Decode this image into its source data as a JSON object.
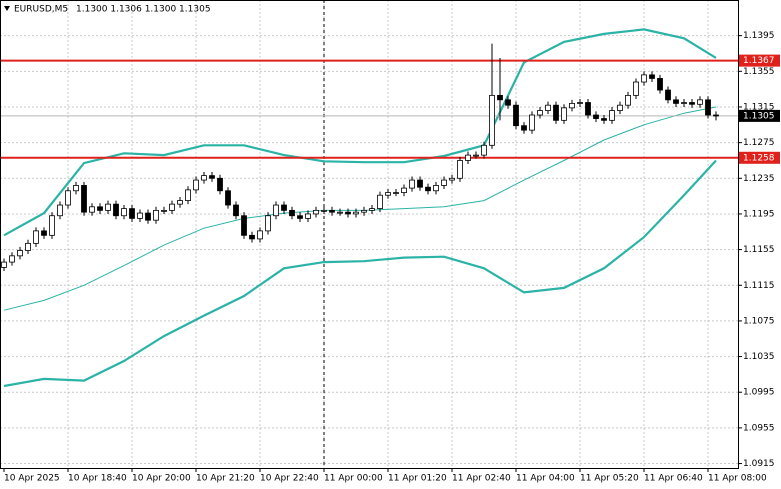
{
  "chart_data": {
    "type": "candlestick",
    "symbol": "EURUSD,M5",
    "ohlc_text": "1.1300 1.1306 1.1300 1.1305",
    "xlim": [
      -0.5,
      91.75
    ],
    "ylim": [
      1.091,
      1.1435
    ],
    "yticks": [
      1.1395,
      1.1355,
      1.1315,
      1.1275,
      1.1235,
      1.1195,
      1.1155,
      1.1115,
      1.1075,
      1.1035,
      1.0995,
      1.0955,
      1.0915
    ],
    "xticks": [
      {
        "value": 0,
        "label": "10 Apr 2025"
      },
      {
        "value": 8,
        "label": "10 Apr 18:40"
      },
      {
        "value": 16,
        "label": "10 Apr 20:00"
      },
      {
        "value": 24,
        "label": "10 Apr 21:20"
      },
      {
        "value": 32,
        "label": "10 Apr 22:40"
      },
      {
        "value": 40,
        "label": "11 Apr 00:00"
      },
      {
        "value": 48,
        "label": "11 Apr 01:20"
      },
      {
        "value": 56,
        "label": "11 Apr 02:40"
      },
      {
        "value": 64,
        "label": "11 Apr 04:00"
      },
      {
        "value": 72,
        "label": "11 Apr 05:20"
      },
      {
        "value": 80,
        "label": "11 Apr 06:40"
      },
      {
        "value": 88,
        "label": "11 Apr 08:00"
      }
    ],
    "grid": true,
    "open": [
      1.1135,
      1.1141,
      1.1148,
      1.1154,
      1.1162,
      1.1176,
      1.1171,
      1.1193,
      1.1205,
      1.1221,
      1.1227,
      1.1197,
      1.1203,
      1.1199,
      1.1206,
      1.1193,
      1.1201,
      1.119,
      1.1196,
      1.1188,
      1.1199,
      1.1199,
      1.1206,
      1.121,
      1.1222,
      1.1233,
      1.1238,
      1.1235,
      1.1221,
      1.1205,
      1.1193,
      1.1171,
      1.1167,
      1.1176,
      1.1193,
      1.1205,
      1.1199,
      1.1193,
      1.119,
      1.1195,
      1.1199,
      1.1199,
      1.1197,
      1.1197,
      1.1195,
      1.1197,
      1.1199,
      1.1201,
      1.1216,
      1.1219,
      1.1219,
      1.1224,
      1.1233,
      1.1225,
      1.1221,
      1.1227,
      1.1233,
      1.1235,
      1.1255,
      1.1261,
      1.1261,
      1.1272,
      1.1328,
      1.1323,
      1.1317,
      1.1294,
      1.1289,
      1.1306,
      1.1311,
      1.1317,
      1.13,
      1.1314,
      1.1319,
      1.132,
      1.1306,
      1.1302,
      1.13,
      1.1311,
      1.1317,
      1.1328,
      1.1343,
      1.1351,
      1.1347,
      1.1334,
      1.1323,
      1.1319,
      1.132,
      1.1318,
      1.1323,
      1.1306
    ],
    "high": [
      1.1145,
      1.1152,
      1.1158,
      1.1166,
      1.118,
      1.118,
      1.1197,
      1.1209,
      1.1225,
      1.1231,
      1.1231,
      1.1207,
      1.1207,
      1.121,
      1.121,
      1.1205,
      1.1205,
      1.12,
      1.12,
      1.1203,
      1.1203,
      1.121,
      1.1214,
      1.1226,
      1.1237,
      1.1242,
      1.1242,
      1.1239,
      1.1225,
      1.1209,
      1.1197,
      1.1175,
      1.118,
      1.1197,
      1.1209,
      1.1209,
      1.1203,
      1.1197,
      1.1199,
      1.1203,
      1.1203,
      1.1203,
      1.1201,
      1.1201,
      1.1201,
      1.1203,
      1.1205,
      1.122,
      1.1223,
      1.1223,
      1.1228,
      1.1237,
      1.1237,
      1.1229,
      1.1231,
      1.1237,
      1.1239,
      1.1259,
      1.1265,
      1.1265,
      1.1276,
      1.1386,
      1.137,
      1.1327,
      1.1321,
      1.1298,
      1.131,
      1.1315,
      1.1321,
      1.1321,
      1.1318,
      1.1323,
      1.1324,
      1.1324,
      1.131,
      1.1306,
      1.1315,
      1.1321,
      1.1332,
      1.1347,
      1.1355,
      1.1355,
      1.1351,
      1.1338,
      1.1327,
      1.1324,
      1.1324,
      1.1327,
      1.1327,
      1.131
    ],
    "low": [
      1.1131,
      1.1137,
      1.1144,
      1.115,
      1.1158,
      1.1167,
      1.1167,
      1.1189,
      1.1201,
      1.1217,
      1.1193,
      1.1193,
      1.1195,
      1.1195,
      1.1189,
      1.1189,
      1.1186,
      1.1186,
      1.1184,
      1.1184,
      1.1195,
      1.1195,
      1.1202,
      1.1206,
      1.1218,
      1.1229,
      1.1231,
      1.1217,
      1.1201,
      1.1189,
      1.1167,
      1.1163,
      1.1163,
      1.1172,
      1.1189,
      1.1195,
      1.1189,
      1.1186,
      1.1186,
      1.1191,
      1.1195,
      1.1193,
      1.1193,
      1.1191,
      1.1191,
      1.1193,
      1.1195,
      1.1197,
      1.1212,
      1.1215,
      1.1215,
      1.122,
      1.1221,
      1.1217,
      1.1217,
      1.1223,
      1.1229,
      1.1231,
      1.1251,
      1.1257,
      1.1257,
      1.1268,
      1.13,
      1.1313,
      1.129,
      1.1285,
      1.1285,
      1.1302,
      1.1307,
      1.1296,
      1.1296,
      1.131,
      1.1315,
      1.1302,
      1.1298,
      1.1296,
      1.1296,
      1.1307,
      1.1313,
      1.1324,
      1.1339,
      1.1343,
      1.133,
      1.1319,
      1.1315,
      1.1315,
      1.1314,
      1.1314,
      1.1302,
      1.13
    ],
    "close": [
      1.1141,
      1.1148,
      1.1154,
      1.1162,
      1.1176,
      1.1171,
      1.1193,
      1.1205,
      1.1221,
      1.1227,
      1.1197,
      1.1203,
      1.1199,
      1.1206,
      1.1193,
      1.1201,
      1.119,
      1.1196,
      1.1188,
      1.1199,
      1.1199,
      1.1206,
      1.121,
      1.1222,
      1.1233,
      1.1238,
      1.1235,
      1.1221,
      1.1205,
      1.1193,
      1.1171,
      1.1167,
      1.1176,
      1.1193,
      1.1205,
      1.1199,
      1.1193,
      1.119,
      1.1195,
      1.1199,
      1.1199,
      1.1197,
      1.1197,
      1.1195,
      1.1197,
      1.1199,
      1.1201,
      1.1216,
      1.1219,
      1.1219,
      1.1224,
      1.1233,
      1.1225,
      1.1221,
      1.1227,
      1.1233,
      1.1235,
      1.1255,
      1.1261,
      1.1261,
      1.1272,
      1.1328,
      1.1323,
      1.1317,
      1.1294,
      1.1289,
      1.1306,
      1.1311,
      1.1317,
      1.13,
      1.1314,
      1.1319,
      1.132,
      1.1306,
      1.1302,
      1.13,
      1.1311,
      1.1317,
      1.1328,
      1.1343,
      1.1351,
      1.1347,
      1.1334,
      1.1323,
      1.1319,
      1.132,
      1.1318,
      1.1323,
      1.1306,
      1.1305
    ],
    "bands": [
      {
        "color": "#2ab3a6",
        "width": 2.2,
        "x": [
          0,
          5,
          10,
          15,
          20,
          25,
          30,
          35,
          40,
          45,
          50,
          55,
          60,
          65,
          70,
          75,
          80,
          85,
          89
        ],
        "values": [
          1.1171,
          1.1196,
          1.1252,
          1.1263,
          1.1261,
          1.1272,
          1.1272,
          1.1261,
          1.1254,
          1.1253,
          1.1253,
          1.126,
          1.1272,
          1.1365,
          1.1388,
          1.1397,
          1.1402,
          1.1392,
          1.137
        ]
      },
      {
        "color": "#2ab3a6",
        "width": 1,
        "x": [
          0,
          5,
          10,
          15,
          20,
          25,
          30,
          35,
          40,
          45,
          50,
          55,
          60,
          65,
          70,
          75,
          80,
          85,
          89
        ],
        "values": [
          1.1087,
          1.1098,
          1.1115,
          1.1137,
          1.116,
          1.1179,
          1.119,
          1.1196,
          1.1199,
          1.1199,
          1.1201,
          1.1203,
          1.121,
          1.1233,
          1.1255,
          1.1278,
          1.1295,
          1.1308,
          1.1315
        ]
      },
      {
        "color": "#2ab3a6",
        "width": 2.2,
        "x": [
          0,
          5,
          10,
          15,
          20,
          25,
          30,
          35,
          40,
          45,
          50,
          55,
          60,
          65,
          70,
          75,
          80,
          85,
          89
        ],
        "values": [
          1.1002,
          1.101,
          1.1008,
          1.103,
          1.1058,
          1.1081,
          1.1103,
          1.1134,
          1.1141,
          1.1142,
          1.1146,
          1.1147,
          1.1134,
          1.1107,
          1.1112,
          1.1134,
          1.1169,
          1.1216,
          1.1255
        ]
      }
    ],
    "levels": [
      {
        "value": 1.1367,
        "color": "#e0201b"
      },
      {
        "value": 1.1258,
        "color": "#e0201b"
      }
    ],
    "current_price": 1.1305
  }
}
